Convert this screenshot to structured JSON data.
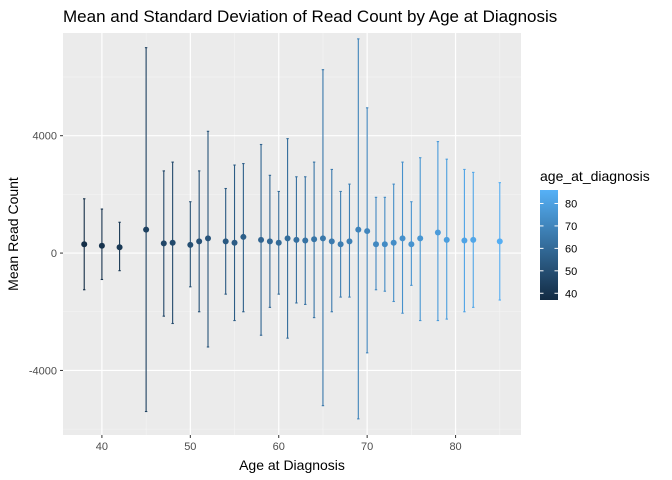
{
  "chart_data": {
    "type": "scatter",
    "title": "Mean and Standard Deviation of Read Count by Age at Diagnosis",
    "xlabel": "Age at Diagnosis",
    "ylabel": "Mean Read Count",
    "xlim": [
      35.6,
      87.4
    ],
    "ylim": [
      -6200,
      7500
    ],
    "x_ticks": [
      40,
      50,
      60,
      70,
      80
    ],
    "y_ticks": [
      -4000,
      0,
      4000
    ],
    "x_tick_labels": [
      "40",
      "50",
      "60",
      "70",
      "80"
    ],
    "y_tick_labels": [
      "-4000",
      "0",
      "4000"
    ],
    "grid": true,
    "legend": {
      "title": "age_at_diagnosis",
      "placement": "right",
      "min": 37,
      "max": 86,
      "ticks": [
        40,
        50,
        60,
        70,
        80
      ],
      "tick_labels": [
        "40",
        "50",
        "60",
        "70",
        "80"
      ],
      "low_color": "#132B43",
      "high_color": "#56B1F7"
    },
    "colors": {
      "panel_background": "#EBEBEB",
      "grid_major": "#FFFFFF",
      "grid_minor": "#F5F5F5"
    },
    "points": [
      {
        "x": 38,
        "mean": 300,
        "ymin": -1250,
        "ymax": 1850
      },
      {
        "x": 40,
        "mean": 250,
        "ymin": -900,
        "ymax": 1500
      },
      {
        "x": 42,
        "mean": 200,
        "ymin": -600,
        "ymax": 1050
      },
      {
        "x": 45,
        "mean": 800,
        "ymin": -5400,
        "ymax": 7000
      },
      {
        "x": 47,
        "mean": 330,
        "ymin": -2150,
        "ymax": 2800
      },
      {
        "x": 48,
        "mean": 350,
        "ymin": -2400,
        "ymax": 3100
      },
      {
        "x": 50,
        "mean": 280,
        "ymin": -1150,
        "ymax": 1750
      },
      {
        "x": 51,
        "mean": 400,
        "ymin": -2000,
        "ymax": 2800
      },
      {
        "x": 52,
        "mean": 500,
        "ymin": -3200,
        "ymax": 4150
      },
      {
        "x": 54,
        "mean": 400,
        "ymin": -1400,
        "ymax": 2200
      },
      {
        "x": 55,
        "mean": 350,
        "ymin": -2300,
        "ymax": 3000
      },
      {
        "x": 56,
        "mean": 550,
        "ymin": -2000,
        "ymax": 3050
      },
      {
        "x": 58,
        "mean": 450,
        "ymin": -2800,
        "ymax": 3700
      },
      {
        "x": 59,
        "mean": 400,
        "ymin": -1850,
        "ymax": 2650
      },
      {
        "x": 60,
        "mean": 350,
        "ymin": -1400,
        "ymax": 2100
      },
      {
        "x": 61,
        "mean": 500,
        "ymin": -2900,
        "ymax": 3900
      },
      {
        "x": 62,
        "mean": 450,
        "ymin": -1700,
        "ymax": 2600
      },
      {
        "x": 63,
        "mean": 430,
        "ymin": -1750,
        "ymax": 2600
      },
      {
        "x": 64,
        "mean": 470,
        "ymin": -2200,
        "ymax": 3100
      },
      {
        "x": 65,
        "mean": 500,
        "ymin": -5200,
        "ymax": 6250
      },
      {
        "x": 66,
        "mean": 400,
        "ymin": -2000,
        "ymax": 2850
      },
      {
        "x": 67,
        "mean": 300,
        "ymin": -1500,
        "ymax": 2100
      },
      {
        "x": 68,
        "mean": 400,
        "ymin": -1500,
        "ymax": 2350
      },
      {
        "x": 69,
        "mean": 800,
        "ymin": -5650,
        "ymax": 7300
      },
      {
        "x": 70,
        "mean": 750,
        "ymin": -3400,
        "ymax": 4950
      },
      {
        "x": 71,
        "mean": 300,
        "ymin": -1250,
        "ymax": 1900
      },
      {
        "x": 72,
        "mean": 300,
        "ymin": -1300,
        "ymax": 1900
      },
      {
        "x": 73,
        "mean": 350,
        "ymin": -1650,
        "ymax": 2350
      },
      {
        "x": 74,
        "mean": 500,
        "ymin": -2050,
        "ymax": 3100
      },
      {
        "x": 75,
        "mean": 300,
        "ymin": -1100,
        "ymax": 1750
      },
      {
        "x": 76,
        "mean": 500,
        "ymin": -2300,
        "ymax": 3250
      },
      {
        "x": 78,
        "mean": 700,
        "ymin": -2300,
        "ymax": 3800
      },
      {
        "x": 79,
        "mean": 450,
        "ymin": -2250,
        "ymax": 3200
      },
      {
        "x": 81,
        "mean": 430,
        "ymin": -2000,
        "ymax": 2850
      },
      {
        "x": 82,
        "mean": 450,
        "ymin": -1850,
        "ymax": 2750
      },
      {
        "x": 85,
        "mean": 400,
        "ymin": -1600,
        "ymax": 2400
      }
    ]
  }
}
